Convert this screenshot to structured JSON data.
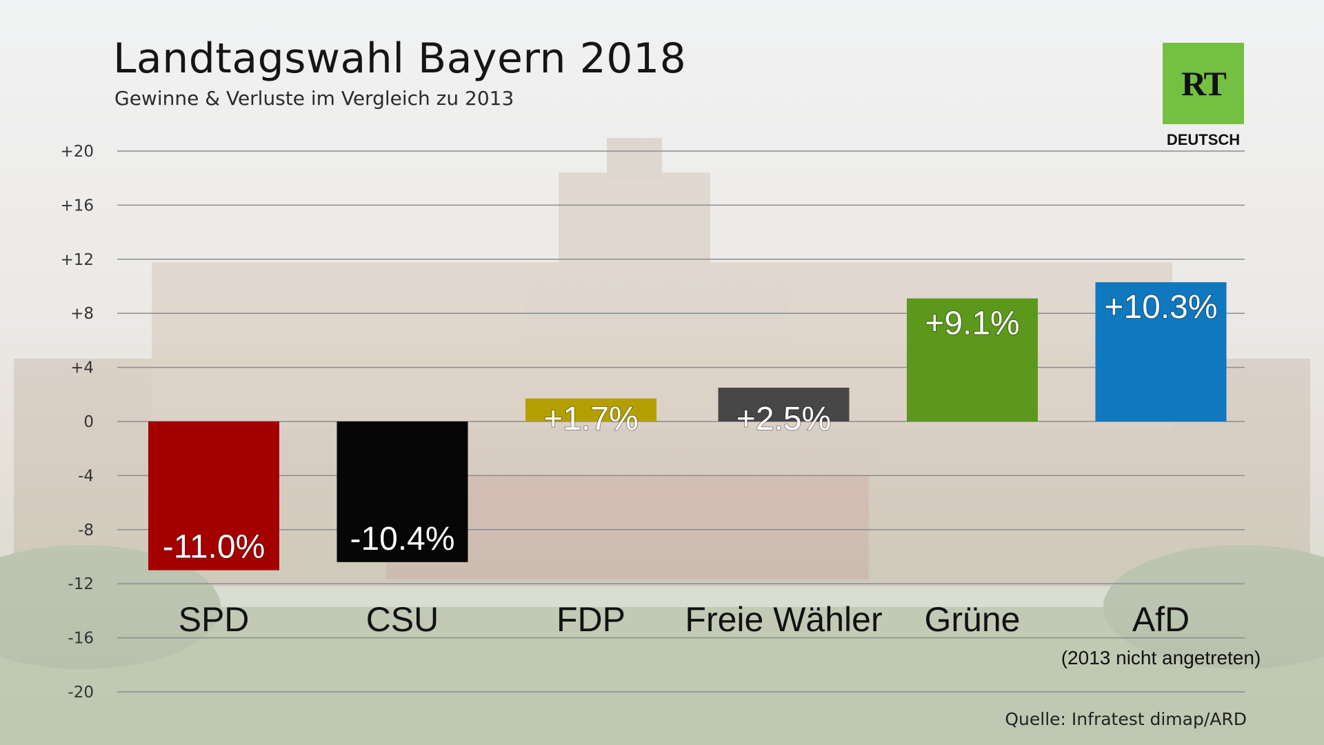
{
  "title": "Landtagswahl Bayern 2018",
  "subtitle": "Gewinne & Verluste im Vergleich zu 2013",
  "logo": {
    "mark": "RT",
    "label": "DEUTSCH",
    "color": "#74c043"
  },
  "source": "Quelle: Infratest dimap/ARD",
  "chart_data": {
    "type": "bar",
    "categories": [
      "SPD",
      "CSU",
      "FDP",
      "Freie Wähler",
      "Grüne",
      "AfD"
    ],
    "values": [
      -11.0,
      -10.4,
      1.7,
      2.5,
      9.1,
      10.3
    ],
    "value_labels": [
      "-11.0%",
      "-10.4%",
      "+1.7%",
      "+2.5%",
      "+9.1%",
      "+10.3%"
    ],
    "colors": [
      "#a40000",
      "#060606",
      "#b3a000",
      "#474747",
      "#5c981b",
      "#1078be"
    ],
    "category_notes": [
      "",
      "",
      "",
      "",
      "",
      "(2013 nicht angetreten)"
    ],
    "ylim": [
      -20,
      20
    ],
    "yticks": [
      20,
      16,
      12,
      8,
      4,
      0,
      -4,
      -8,
      -12,
      -16,
      -20
    ],
    "ytick_labels": [
      "+20",
      "+16",
      "+12",
      "+8",
      "+4",
      "0",
      "-4",
      "-8",
      "-12",
      "-16",
      "-20"
    ],
    "grid": true,
    "title": "Landtagswahl Bayern 2018",
    "subtitle": "Gewinne & Verluste im Vergleich zu 2013"
  }
}
